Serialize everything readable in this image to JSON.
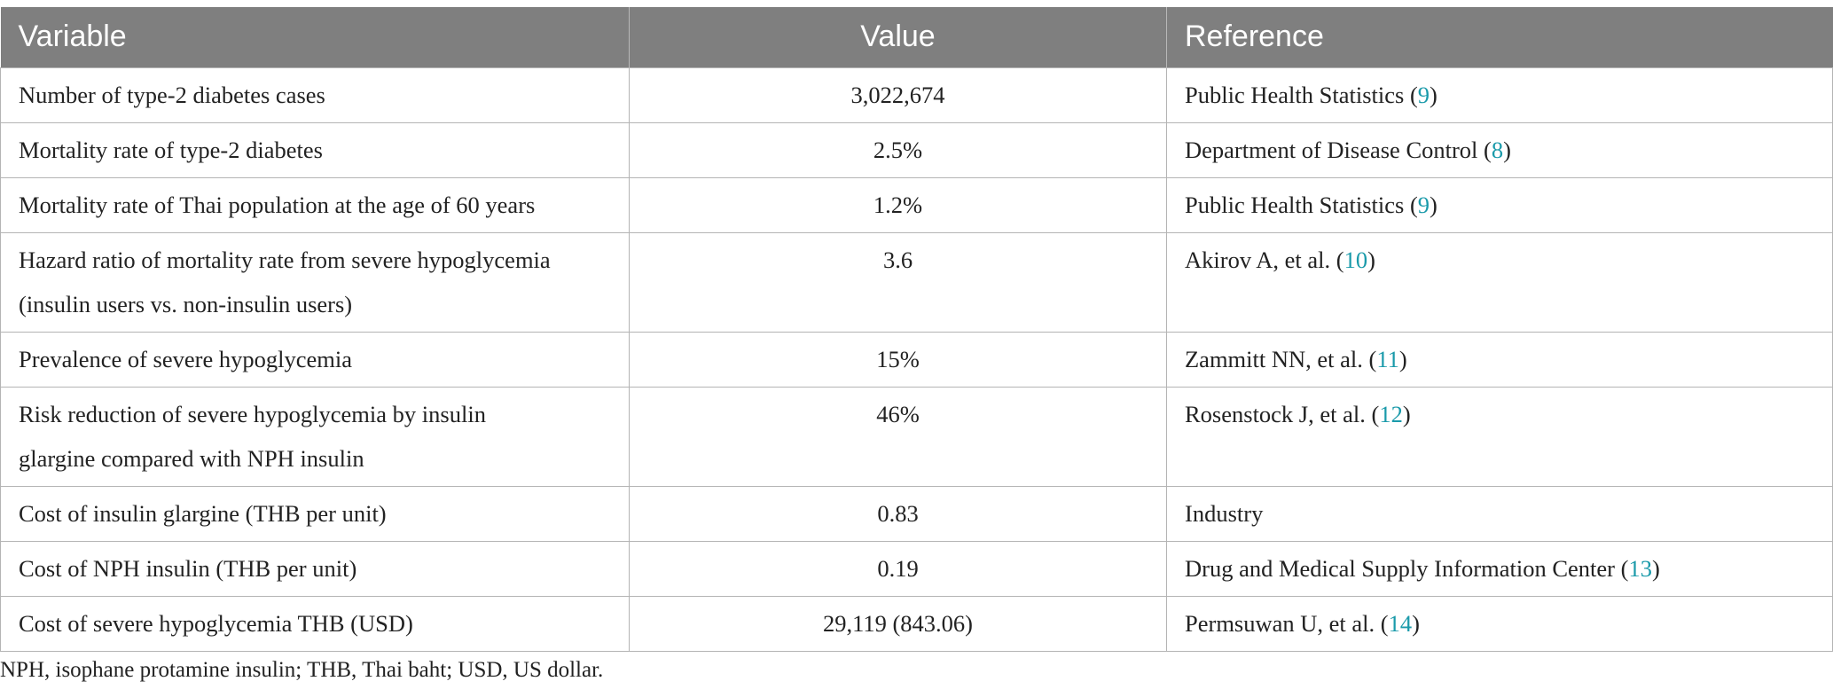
{
  "headers": {
    "variable": "Variable",
    "value": "Value",
    "reference": "Reference"
  },
  "rows": [
    {
      "variable": "Number of type-2 diabetes cases",
      "value": "3,022,674",
      "ref_text": "Public Health Statistics",
      "ref_num": "9"
    },
    {
      "variable": "Mortality rate of type-2 diabetes",
      "value": "2.5%",
      "ref_text": "Department of Disease Control",
      "ref_num": "8"
    },
    {
      "variable": "Mortality rate of Thai population at the age of 60 years",
      "value": "1.2%",
      "ref_text": "Public Health Statistics",
      "ref_num": "9"
    },
    {
      "variable_line1": "Hazard ratio of mortality rate from severe hypoglycemia",
      "variable_line2": "(insulin users vs. non-insulin users)",
      "value": "3.6",
      "ref_text": "Akirov A, et al.",
      "ref_num": "10"
    },
    {
      "variable": "Prevalence of severe hypoglycemia",
      "value": "15%",
      "ref_text": "Zammitt NN, et al.",
      "ref_num": "11"
    },
    {
      "variable_line1": "Risk reduction of severe hypoglycemia by insulin",
      "variable_line2": "glargine compared with NPH insulin",
      "value": "46%",
      "ref_text": "Rosenstock J, et al.",
      "ref_num": "12"
    },
    {
      "variable": "Cost of insulin glargine (THB per unit)",
      "value": "0.83",
      "ref_text": "Industry"
    },
    {
      "variable": "Cost of NPH insulin (THB per unit)",
      "value": "0.19",
      "ref_text": "Drug and Medical Supply Information Center",
      "ref_num": "13"
    },
    {
      "variable": "Cost of severe hypoglycemia THB (USD)",
      "value": "29,119 (843.06)",
      "ref_text": "Permsuwan U, et al.",
      "ref_num": "14"
    }
  ],
  "footnote": "NPH, isophane protamine insulin; THB, Thai baht; USD, US dollar.",
  "colors": {
    "header_bg": "#7f7f7f",
    "header_text": "#ffffff",
    "citation": "#1a9aaa",
    "border": "#b4b4b4"
  }
}
